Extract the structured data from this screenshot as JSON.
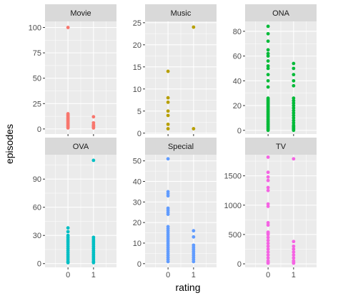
{
  "chart_data": {
    "type": "scatter",
    "xlabel": "rating",
    "ylabel": "episodes",
    "xlim": [
      -0.9,
      1.9
    ],
    "x_ticks": [
      0,
      1
    ],
    "x_tick_labels": [
      "0",
      "1"
    ],
    "grid": true,
    "legend": "none",
    "facets": [
      {
        "label": "Movie",
        "color": "#F8766D",
        "ylim": [
          -5,
          106
        ],
        "y_ticks": [
          0,
          25,
          50,
          75,
          100
        ],
        "y_tick_labels": [
          "0",
          "25",
          "50",
          "75",
          "100"
        ],
        "points": [
          {
            "x": 0,
            "y": [
              100,
              15,
              14,
              13,
              12,
              11,
              10,
              9,
              8,
              7,
              6,
              5,
              4,
              3,
              2,
              1
            ]
          },
          {
            "x": 1,
            "y": [
              12,
              6,
              4,
              3,
              2,
              1
            ]
          }
        ]
      },
      {
        "label": "Music",
        "color": "#B79F00",
        "ylim": [
          -0.2,
          25.3
        ],
        "y_ticks": [
          0,
          5,
          10,
          15,
          20,
          25
        ],
        "y_tick_labels": [
          "0",
          "5",
          "10",
          "15",
          "20",
          "25"
        ],
        "points": [
          {
            "x": 0,
            "y": [
              14,
              8,
              7,
              5,
              4,
              2,
              1
            ]
          },
          {
            "x": 1,
            "y": [
              24,
              1
            ]
          }
        ]
      },
      {
        "label": "ONA",
        "color": "#00BA38",
        "ylim": [
          -3,
          88
        ],
        "y_ticks": [
          0,
          20,
          40,
          60,
          80
        ],
        "y_tick_labels": [
          "0",
          "20",
          "40",
          "60",
          "80"
        ],
        "points": [
          {
            "x": 0,
            "y": [
              84,
              78,
              72,
              65,
              62,
              60,
              56,
              52,
              50,
              45,
              40,
              35,
              26,
              25,
              24,
              23,
              22,
              21,
              20,
              19,
              18,
              17,
              16,
              15,
              14,
              13,
              12,
              11,
              10,
              9,
              8,
              7,
              6,
              5,
              4,
              3,
              2,
              1,
              0
            ]
          },
          {
            "x": 1,
            "y": [
              54,
              50,
              45,
              40,
              36,
              26,
              24,
              22,
              20,
              18,
              16,
              14,
              12,
              10,
              8,
              6,
              4,
              3,
              2,
              1,
              0
            ]
          }
        ]
      },
      {
        "label": "OVA",
        "color": "#00BFC4",
        "ylim": [
          -4,
          116
        ],
        "y_ticks": [
          0,
          30,
          60,
          90
        ],
        "y_tick_labels": [
          "0",
          "30",
          "60",
          "90"
        ],
        "points": [
          {
            "x": 0,
            "y": [
              38,
              34,
              30,
              28,
              26,
              24,
              22,
              20,
              18,
              16,
              14,
              12,
              10,
              8,
              6,
              4,
              2,
              1
            ]
          },
          {
            "x": 1,
            "y": [
              110,
              28,
              26,
              24,
              22,
              20,
              18,
              16,
              14,
              12,
              10,
              8,
              6,
              4,
              2,
              1
            ]
          }
        ]
      },
      {
        "label": "Special",
        "color": "#619CFF",
        "ylim": [
          -1.8,
          53
        ],
        "y_ticks": [
          0,
          10,
          20,
          30,
          40,
          50
        ],
        "y_tick_labels": [
          "0",
          "10",
          "20",
          "30",
          "40",
          "50"
        ],
        "points": [
          {
            "x": 0,
            "y": [
              51,
              35,
              34,
              33,
              27,
              26,
              25,
              24,
              18,
              17,
              16,
              15,
              14,
              13,
              12,
              11,
              10,
              9,
              8,
              7,
              6,
              5,
              4,
              3,
              2,
              1
            ]
          },
          {
            "x": 1,
            "y": [
              16,
              13,
              9,
              8,
              7,
              6,
              5,
              4,
              3,
              2,
              1
            ]
          }
        ]
      },
      {
        "label": "TV",
        "color": "#F564E3",
        "ylim": [
          -60,
          1860
        ],
        "y_ticks": [
          0,
          500,
          1000,
          1500
        ],
        "y_tick_labels": [
          "0",
          "500",
          "1000",
          "1500"
        ],
        "points": [
          {
            "x": 0,
            "y": [
              1818,
              1560,
              1480,
              1420,
              1300,
              1250,
              1020,
              980,
              700,
              660,
              540,
              520,
              500,
              450,
              400,
              350,
              300,
              250,
              200,
              150,
              100,
              50,
              25,
              10
            ]
          },
          {
            "x": 1,
            "y": [
              1790,
              380,
              300,
              250,
              200,
              150,
              100,
              50,
              25,
              10
            ]
          }
        ]
      }
    ]
  }
}
